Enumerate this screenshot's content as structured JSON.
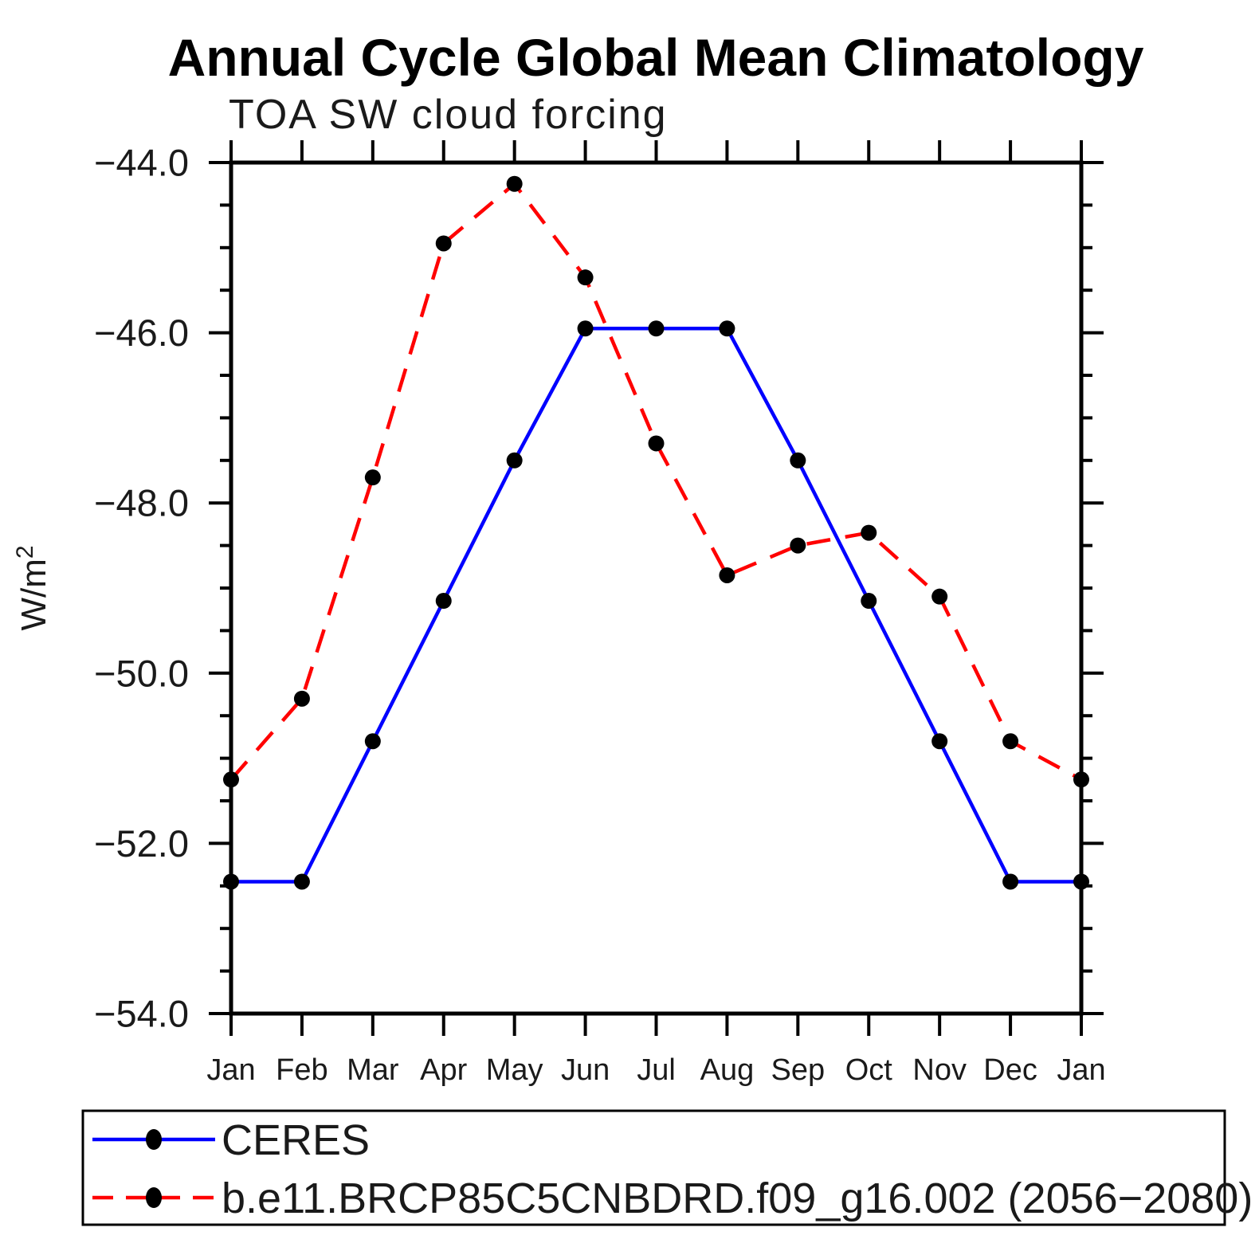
{
  "figure": {
    "background": "#ffffff",
    "frame_color": "#000000"
  },
  "axis": {
    "ylabel_base": "W/m",
    "ylabel_sup": "2"
  },
  "chart_data": {
    "type": "line",
    "title": "Annual Cycle Global Mean Climatology",
    "subtitle": "TOA SW cloud forcing",
    "ylabel": "W/m²",
    "xlabel": "",
    "categories": [
      "Jan",
      "Feb",
      "Mar",
      "Apr",
      "May",
      "Jun",
      "Jul",
      "Aug",
      "Sep",
      "Oct",
      "Nov",
      "Dec",
      "Jan"
    ],
    "series": [
      {
        "name": "CERES",
        "color": "#0000ff",
        "line_style": "solid",
        "marker": "filled-circle",
        "marker_color": "#000000",
        "values": [
          -52.45,
          -52.45,
          -50.8,
          -49.15,
          -47.5,
          -45.95,
          -45.95,
          -45.95,
          -47.5,
          -49.15,
          -50.8,
          -52.45,
          -52.45
        ]
      },
      {
        "name": "b.e11.BRCP85C5CNBDRD.f09_g16.002 (2056−2080)",
        "color": "#ff0000",
        "line_style": "dashed",
        "marker": "filled-circle",
        "marker_color": "#000000",
        "values": [
          -51.25,
          -50.3,
          -47.7,
          -44.95,
          -44.25,
          -45.35,
          -47.3,
          -48.85,
          -48.5,
          -48.35,
          -49.1,
          -50.8,
          -51.25
        ]
      }
    ],
    "ylim": [
      -54.0,
      -44.0
    ],
    "ytick_values": [
      -44,
      -46,
      -48,
      -50,
      -52,
      -54
    ],
    "ytick_labels": [
      "−44.0",
      "−46.0",
      "−48.0",
      "−50.0",
      "−52.0",
      "−54.0"
    ],
    "ytick_minor_step": 0.5,
    "grid": false,
    "legend_position": "bottom-left-box"
  }
}
